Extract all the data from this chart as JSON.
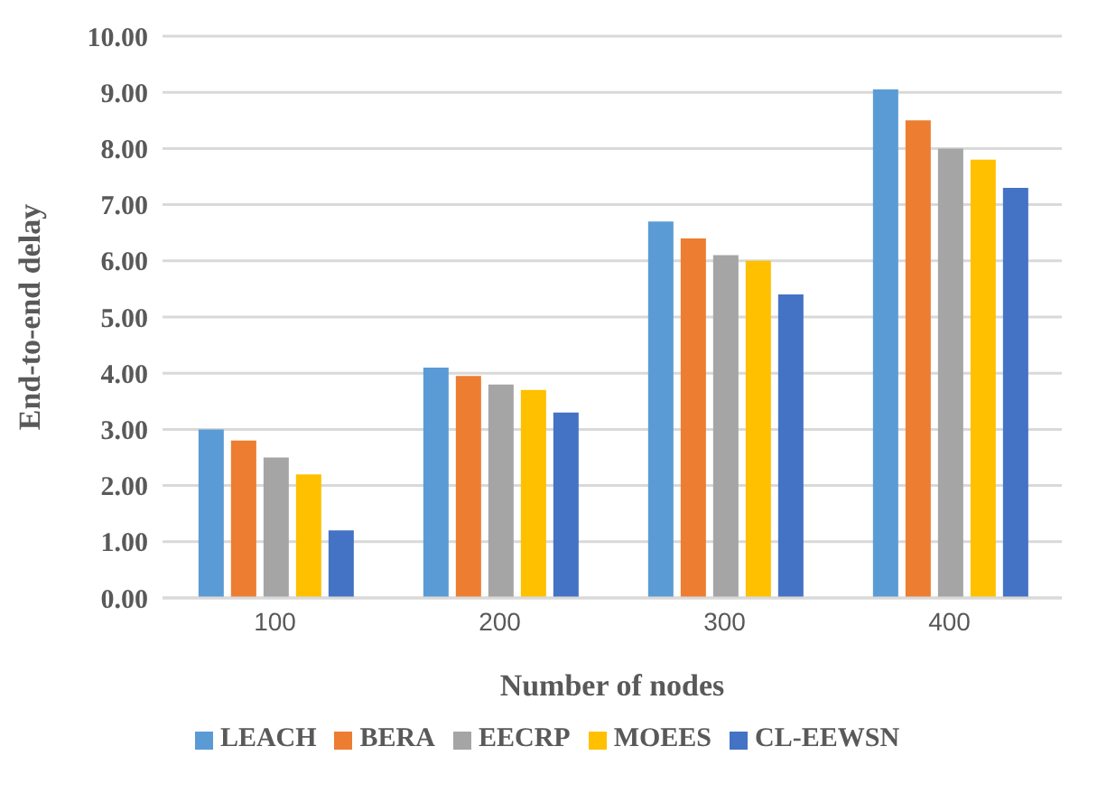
{
  "chart_data": {
    "type": "bar",
    "xlabel": "Number of nodes",
    "ylabel": "End-to-end delay",
    "categories": [
      "100",
      "200",
      "300",
      "400"
    ],
    "series": [
      {
        "name": "LEACH",
        "color": "#5b9bd5",
        "values": [
          3.0,
          4.1,
          6.7,
          9.05
        ]
      },
      {
        "name": "BERA",
        "color": "#ed7d31",
        "values": [
          2.8,
          3.95,
          6.4,
          8.5
        ]
      },
      {
        "name": "EECRP",
        "color": "#a5a5a5",
        "values": [
          2.5,
          3.8,
          6.1,
          8.0
        ]
      },
      {
        "name": "MOEES",
        "color": "#ffc000",
        "values": [
          2.2,
          3.7,
          6.0,
          7.8
        ]
      },
      {
        "name": "CL-EEWSN",
        "color": "#4472c4",
        "values": [
          1.2,
          3.3,
          5.4,
          7.3
        ]
      }
    ],
    "ylim": [
      0,
      10
    ],
    "yticks": [
      {
        "value": 0,
        "label": "0.00"
      },
      {
        "value": 1,
        "label": "1.00"
      },
      {
        "value": 2,
        "label": "2.00"
      },
      {
        "value": 3,
        "label": "3.00"
      },
      {
        "value": 4,
        "label": "4.00"
      },
      {
        "value": 5,
        "label": "5.00"
      },
      {
        "value": 6,
        "label": "6.00"
      },
      {
        "value": 7,
        "label": "7.00"
      },
      {
        "value": 8,
        "label": "8.00"
      },
      {
        "value": 9,
        "label": "9.00"
      },
      {
        "value": 10,
        "label": "10.00"
      }
    ],
    "grid": "y",
    "legend": "bottom"
  }
}
